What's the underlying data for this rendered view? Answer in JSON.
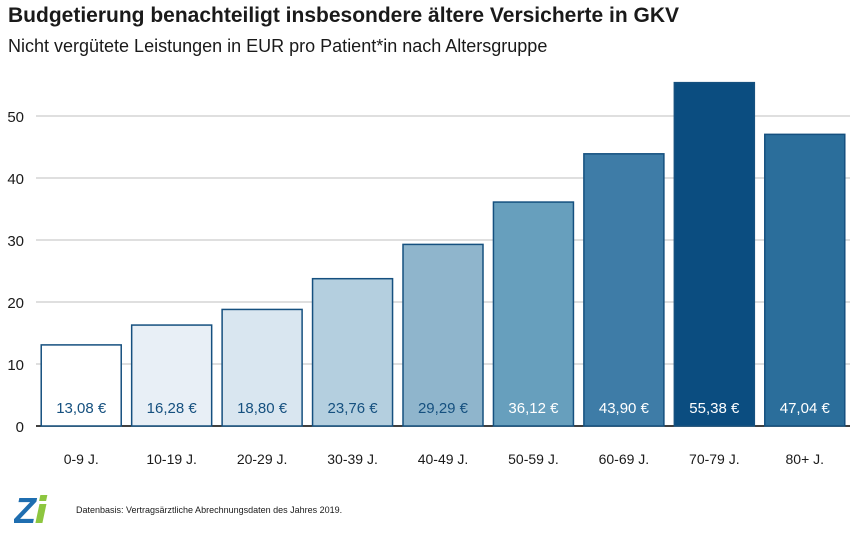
{
  "chart_data": {
    "type": "bar",
    "title": "Budgetierung benachteiligt insbesondere ältere Versicherte in GKV",
    "subtitle": "Nicht vergütete Leistungen in EUR pro Patient*in nach Altersgruppe",
    "categories": [
      "0-9 J.",
      "10-19 J.",
      "20-29 J.",
      "30-39 J.",
      "40-49 J.",
      "50-59 J.",
      "60-69 J.",
      "70-79 J.",
      "80+ J."
    ],
    "values": [
      13.08,
      16.28,
      18.8,
      23.76,
      29.29,
      36.12,
      43.9,
      55.38,
      47.04
    ],
    "value_labels": [
      "13,08 €",
      "16,28 €",
      "18,80 €",
      "23,76 €",
      "29,29 €",
      "36,12 €",
      "43,90 €",
      "55,38 €",
      "47,04 €"
    ],
    "yticks": [
      0,
      10,
      20,
      30,
      40,
      50
    ],
    "ylim": [
      0,
      57
    ],
    "grid": true,
    "colors": {
      "fills": [
        "#ffffff",
        "#e8eff6",
        "#d9e6f0",
        "#b4cfdf",
        "#8fb5cc",
        "#679fbd",
        "#3e7ca7",
        "#0b4d80",
        "#2b6e9b"
      ],
      "border": "#15507f",
      "label_dark": "#15507f",
      "label_light": "#ffffff",
      "grid": "#bfbfbf"
    }
  },
  "footnote": "Datenbasis: Vertragsärztliche Abrechnungsdaten des Jahres 2019.",
  "logo": {
    "text": "Zi",
    "z_color": "#1f6eb0",
    "i_color": "#8dc63f"
  }
}
